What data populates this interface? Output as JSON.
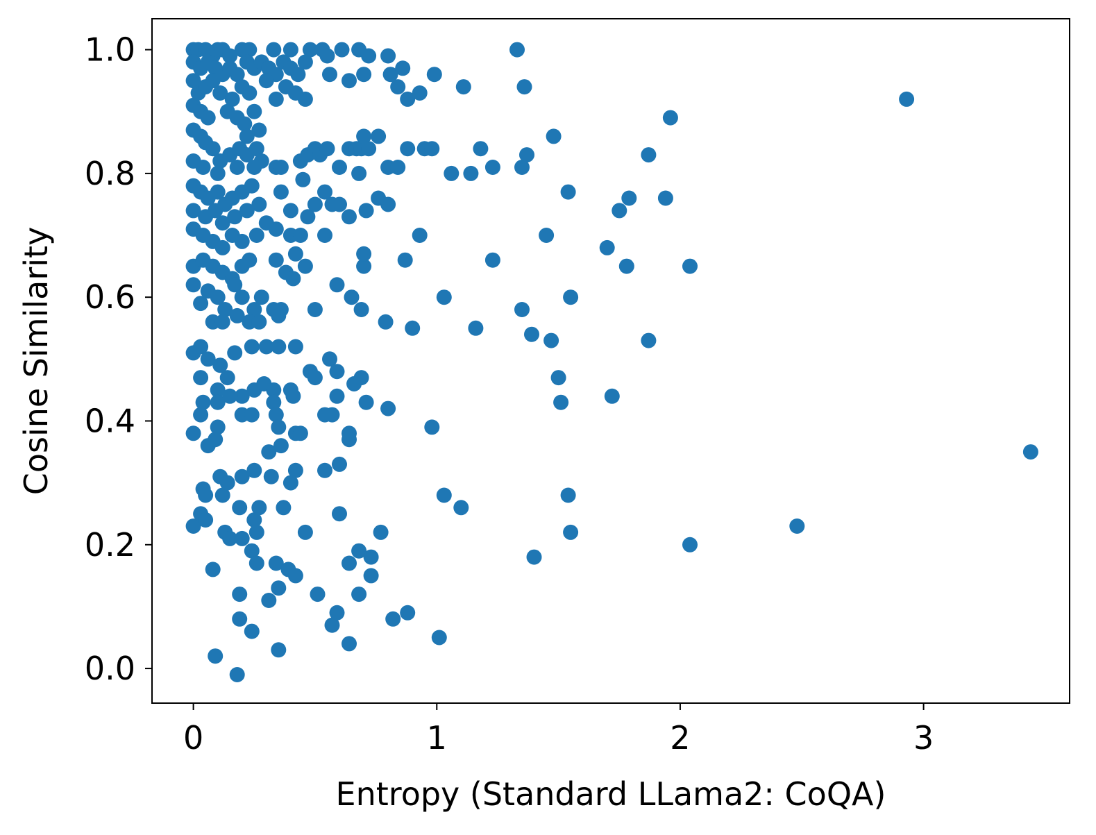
{
  "chart_data": {
    "type": "scatter",
    "title": "",
    "xlabel": "Entropy (Standard LLama2: CoQA)",
    "ylabel": "Cosine Similarity",
    "xlim": [
      -0.17,
      3.6
    ],
    "ylim": [
      -0.056,
      1.05
    ],
    "xticks": [
      0,
      1,
      2,
      3
    ],
    "xtick_labels": [
      "0",
      "1",
      "2",
      "3"
    ],
    "yticks": [
      0.0,
      0.2,
      0.4,
      0.6,
      0.8,
      1.0
    ],
    "ytick_labels": [
      "0.0",
      "0.2",
      "0.4",
      "0.6",
      "0.8",
      "1.0"
    ],
    "grid": false,
    "legend": null,
    "marker_color": "#1f77b4",
    "series": [
      {
        "name": "samples",
        "points": [
          [
            0.0,
            1.0
          ],
          [
            0.02,
            1.0
          ],
          [
            0.05,
            1.0
          ],
          [
            0.08,
            0.99
          ],
          [
            0.1,
            1.0
          ],
          [
            0.12,
            1.0
          ],
          [
            0.15,
            0.99
          ],
          [
            0.2,
            1.0
          ],
          [
            0.23,
            1.0
          ],
          [
            0.33,
            1.0
          ],
          [
            0.4,
            1.0
          ],
          [
            0.48,
            1.0
          ],
          [
            0.53,
            1.0
          ],
          [
            0.55,
            0.99
          ],
          [
            0.61,
            1.0
          ],
          [
            0.68,
            1.0
          ],
          [
            0.72,
            0.99
          ],
          [
            0.8,
            0.99
          ],
          [
            1.33,
            1.0
          ],
          [
            0.0,
            0.98
          ],
          [
            0.03,
            0.97
          ],
          [
            0.06,
            0.98
          ],
          [
            0.09,
            0.97
          ],
          [
            0.12,
            0.96
          ],
          [
            0.15,
            0.97
          ],
          [
            0.18,
            0.96
          ],
          [
            0.22,
            0.98
          ],
          [
            0.25,
            0.97
          ],
          [
            0.28,
            0.98
          ],
          [
            0.31,
            0.97
          ],
          [
            0.34,
            0.96
          ],
          [
            0.37,
            0.98
          ],
          [
            0.4,
            0.97
          ],
          [
            0.43,
            0.96
          ],
          [
            0.46,
            0.98
          ],
          [
            0.56,
            0.96
          ],
          [
            0.64,
            0.95
          ],
          [
            0.7,
            0.96
          ],
          [
            0.81,
            0.96
          ],
          [
            0.86,
            0.97
          ],
          [
            0.84,
            0.94
          ],
          [
            0.99,
            0.96
          ],
          [
            1.11,
            0.94
          ],
          [
            1.36,
            0.94
          ],
          [
            0.0,
            0.95
          ],
          [
            0.02,
            0.93
          ],
          [
            0.05,
            0.94
          ],
          [
            0.08,
            0.95
          ],
          [
            0.11,
            0.93
          ],
          [
            0.16,
            0.92
          ],
          [
            0.2,
            0.94
          ],
          [
            0.23,
            0.93
          ],
          [
            0.3,
            0.95
          ],
          [
            0.34,
            0.92
          ],
          [
            0.38,
            0.94
          ],
          [
            0.42,
            0.93
          ],
          [
            0.46,
            0.92
          ],
          [
            0.88,
            0.92
          ],
          [
            0.93,
            0.93
          ],
          [
            0.0,
            0.91
          ],
          [
            0.03,
            0.9
          ],
          [
            0.06,
            0.89
          ],
          [
            0.14,
            0.9
          ],
          [
            0.18,
            0.89
          ],
          [
            0.21,
            0.88
          ],
          [
            0.25,
            0.9
          ],
          [
            0.27,
            0.87
          ],
          [
            0.22,
            0.86
          ],
          [
            2.93,
            0.92
          ],
          [
            1.96,
            0.89
          ],
          [
            0.0,
            0.87
          ],
          [
            0.03,
            0.86
          ],
          [
            0.05,
            0.85
          ],
          [
            0.08,
            0.84
          ],
          [
            0.11,
            0.82
          ],
          [
            0.15,
            0.83
          ],
          [
            0.19,
            0.84
          ],
          [
            0.22,
            0.83
          ],
          [
            0.26,
            0.84
          ],
          [
            0.28,
            0.82
          ],
          [
            0.0,
            0.82
          ],
          [
            0.04,
            0.81
          ],
          [
            0.1,
            0.8
          ],
          [
            0.18,
            0.81
          ],
          [
            0.25,
            0.81
          ],
          [
            0.34,
            0.81
          ],
          [
            0.36,
            0.81
          ],
          [
            0.44,
            0.82
          ],
          [
            0.47,
            0.83
          ],
          [
            0.5,
            0.84
          ],
          [
            0.52,
            0.83
          ],
          [
            0.55,
            0.84
          ],
          [
            0.6,
            0.81
          ],
          [
            0.64,
            0.84
          ],
          [
            0.67,
            0.84
          ],
          [
            0.69,
            0.84
          ],
          [
            0.7,
            0.86
          ],
          [
            0.72,
            0.84
          ],
          [
            0.76,
            0.86
          ],
          [
            0.8,
            0.81
          ],
          [
            0.84,
            0.81
          ],
          [
            0.88,
            0.84
          ],
          [
            0.95,
            0.84
          ],
          [
            0.98,
            0.84
          ],
          [
            1.06,
            0.8
          ],
          [
            1.14,
            0.8
          ],
          [
            1.18,
            0.84
          ],
          [
            1.23,
            0.81
          ],
          [
            1.35,
            0.81
          ],
          [
            1.37,
            0.83
          ],
          [
            1.48,
            0.86
          ],
          [
            1.87,
            0.83
          ],
          [
            0.0,
            0.78
          ],
          [
            0.03,
            0.77
          ],
          [
            0.06,
            0.76
          ],
          [
            0.1,
            0.77
          ],
          [
            0.13,
            0.75
          ],
          [
            0.16,
            0.76
          ],
          [
            0.2,
            0.77
          ],
          [
            0.24,
            0.78
          ],
          [
            0.27,
            0.75
          ],
          [
            0.0,
            0.74
          ],
          [
            0.05,
            0.73
          ],
          [
            0.09,
            0.74
          ],
          [
            0.12,
            0.72
          ],
          [
            0.17,
            0.73
          ],
          [
            0.22,
            0.74
          ],
          [
            0.36,
            0.77
          ],
          [
            0.4,
            0.74
          ],
          [
            0.45,
            0.79
          ],
          [
            0.47,
            0.73
          ],
          [
            0.5,
            0.75
          ],
          [
            0.54,
            0.77
          ],
          [
            0.57,
            0.75
          ],
          [
            0.6,
            0.75
          ],
          [
            0.64,
            0.73
          ],
          [
            0.68,
            0.8
          ],
          [
            0.71,
            0.74
          ],
          [
            0.76,
            0.76
          ],
          [
            0.8,
            0.75
          ],
          [
            1.54,
            0.77
          ],
          [
            1.75,
            0.74
          ],
          [
            1.79,
            0.76
          ],
          [
            1.94,
            0.76
          ],
          [
            0.0,
            0.71
          ],
          [
            0.04,
            0.7
          ],
          [
            0.08,
            0.69
          ],
          [
            0.12,
            0.68
          ],
          [
            0.16,
            0.7
          ],
          [
            0.2,
            0.69
          ],
          [
            0.26,
            0.7
          ],
          [
            0.3,
            0.72
          ],
          [
            0.34,
            0.71
          ],
          [
            0.4,
            0.7
          ],
          [
            0.44,
            0.7
          ],
          [
            0.54,
            0.7
          ],
          [
            0.93,
            0.7
          ],
          [
            1.45,
            0.7
          ],
          [
            1.7,
            0.68
          ],
          [
            0.0,
            0.65
          ],
          [
            0.04,
            0.66
          ],
          [
            0.08,
            0.65
          ],
          [
            0.12,
            0.64
          ],
          [
            0.16,
            0.63
          ],
          [
            0.2,
            0.65
          ],
          [
            0.23,
            0.66
          ],
          [
            0.34,
            0.66
          ],
          [
            0.38,
            0.64
          ],
          [
            0.41,
            0.63
          ],
          [
            0.46,
            0.65
          ],
          [
            0.42,
            0.67
          ],
          [
            0.7,
            0.65
          ],
          [
            0.7,
            0.67
          ],
          [
            0.87,
            0.66
          ],
          [
            1.23,
            0.66
          ],
          [
            1.78,
            0.65
          ],
          [
            2.04,
            0.65
          ],
          [
            0.0,
            0.62
          ],
          [
            0.03,
            0.59
          ],
          [
            0.06,
            0.61
          ],
          [
            0.1,
            0.6
          ],
          [
            0.13,
            0.58
          ],
          [
            0.17,
            0.62
          ],
          [
            0.2,
            0.6
          ],
          [
            0.25,
            0.58
          ],
          [
            0.28,
            0.6
          ],
          [
            0.33,
            0.58
          ],
          [
            0.36,
            0.58
          ],
          [
            0.08,
            0.56
          ],
          [
            0.12,
            0.56
          ],
          [
            0.18,
            0.57
          ],
          [
            0.23,
            0.56
          ],
          [
            0.27,
            0.56
          ],
          [
            0.35,
            0.57
          ],
          [
            0.5,
            0.58
          ],
          [
            0.59,
            0.62
          ],
          [
            0.65,
            0.6
          ],
          [
            0.69,
            0.58
          ],
          [
            0.79,
            0.56
          ],
          [
            0.9,
            0.55
          ],
          [
            1.03,
            0.6
          ],
          [
            1.16,
            0.55
          ],
          [
            1.35,
            0.58
          ],
          [
            1.39,
            0.54
          ],
          [
            1.47,
            0.53
          ],
          [
            1.55,
            0.6
          ],
          [
            1.87,
            0.53
          ],
          [
            0.0,
            0.51
          ],
          [
            0.03,
            0.52
          ],
          [
            0.06,
            0.5
          ],
          [
            0.11,
            0.49
          ],
          [
            0.17,
            0.51
          ],
          [
            0.24,
            0.52
          ],
          [
            0.3,
            0.52
          ],
          [
            0.35,
            0.52
          ],
          [
            0.42,
            0.52
          ],
          [
            0.03,
            0.47
          ],
          [
            0.1,
            0.45
          ],
          [
            0.14,
            0.47
          ],
          [
            0.2,
            0.44
          ],
          [
            0.25,
            0.45
          ],
          [
            0.29,
            0.46
          ],
          [
            0.33,
            0.45
          ],
          [
            0.4,
            0.45
          ],
          [
            0.48,
            0.48
          ],
          [
            0.5,
            0.47
          ],
          [
            0.56,
            0.5
          ],
          [
            0.59,
            0.48
          ],
          [
            0.66,
            0.46
          ],
          [
            0.69,
            0.47
          ],
          [
            0.71,
            0.43
          ],
          [
            1.5,
            0.47
          ],
          [
            0.04,
            0.43
          ],
          [
            0.1,
            0.43
          ],
          [
            0.15,
            0.44
          ],
          [
            0.2,
            0.41
          ],
          [
            0.24,
            0.41
          ],
          [
            0.33,
            0.43
          ],
          [
            0.34,
            0.41
          ],
          [
            0.41,
            0.44
          ],
          [
            0.57,
            0.41
          ],
          [
            0.54,
            0.41
          ],
          [
            0.59,
            0.44
          ],
          [
            0.8,
            0.42
          ],
          [
            1.51,
            0.43
          ],
          [
            1.72,
            0.44
          ],
          [
            0.0,
            0.38
          ],
          [
            0.03,
            0.41
          ],
          [
            0.06,
            0.36
          ],
          [
            0.09,
            0.37
          ],
          [
            0.1,
            0.39
          ],
          [
            0.31,
            0.35
          ],
          [
            0.36,
            0.36
          ],
          [
            0.35,
            0.39
          ],
          [
            0.42,
            0.38
          ],
          [
            0.44,
            0.38
          ],
          [
            0.64,
            0.38
          ],
          [
            0.64,
            0.37
          ],
          [
            0.98,
            0.39
          ],
          [
            3.44,
            0.35
          ],
          [
            0.04,
            0.29
          ],
          [
            0.05,
            0.28
          ],
          [
            0.11,
            0.31
          ],
          [
            0.12,
            0.28
          ],
          [
            0.14,
            0.3
          ],
          [
            0.2,
            0.31
          ],
          [
            0.25,
            0.32
          ],
          [
            0.32,
            0.31
          ],
          [
            0.4,
            0.3
          ],
          [
            0.42,
            0.32
          ],
          [
            0.54,
            0.32
          ],
          [
            0.6,
            0.33
          ],
          [
            0.0,
            0.23
          ],
          [
            0.03,
            0.25
          ],
          [
            0.05,
            0.24
          ],
          [
            0.13,
            0.22
          ],
          [
            0.15,
            0.21
          ],
          [
            0.19,
            0.26
          ],
          [
            0.2,
            0.21
          ],
          [
            0.25,
            0.24
          ],
          [
            0.26,
            0.22
          ],
          [
            0.27,
            0.26
          ],
          [
            0.37,
            0.26
          ],
          [
            0.46,
            0.22
          ],
          [
            0.6,
            0.25
          ],
          [
            1.03,
            0.28
          ],
          [
            1.1,
            0.26
          ],
          [
            1.54,
            0.28
          ],
          [
            1.55,
            0.22
          ],
          [
            2.48,
            0.23
          ],
          [
            2.04,
            0.2
          ],
          [
            0.08,
            0.16
          ],
          [
            0.24,
            0.19
          ],
          [
            0.26,
            0.17
          ],
          [
            0.34,
            0.17
          ],
          [
            0.39,
            0.16
          ],
          [
            0.42,
            0.15
          ],
          [
            0.64,
            0.17
          ],
          [
            0.68,
            0.19
          ],
          [
            0.73,
            0.18
          ],
          [
            0.73,
            0.15
          ],
          [
            0.77,
            0.22
          ],
          [
            1.4,
            0.18
          ],
          [
            0.19,
            0.12
          ],
          [
            0.31,
            0.11
          ],
          [
            0.35,
            0.13
          ],
          [
            0.51,
            0.12
          ],
          [
            0.59,
            0.09
          ],
          [
            0.57,
            0.07
          ],
          [
            0.68,
            0.12
          ],
          [
            0.82,
            0.08
          ],
          [
            0.88,
            0.09
          ],
          [
            0.09,
            0.02
          ],
          [
            0.19,
            0.08
          ],
          [
            0.24,
            0.06
          ],
          [
            0.35,
            0.03
          ],
          [
            0.64,
            0.04
          ],
          [
            1.01,
            0.05
          ],
          [
            0.18,
            -0.01
          ]
        ]
      }
    ]
  }
}
